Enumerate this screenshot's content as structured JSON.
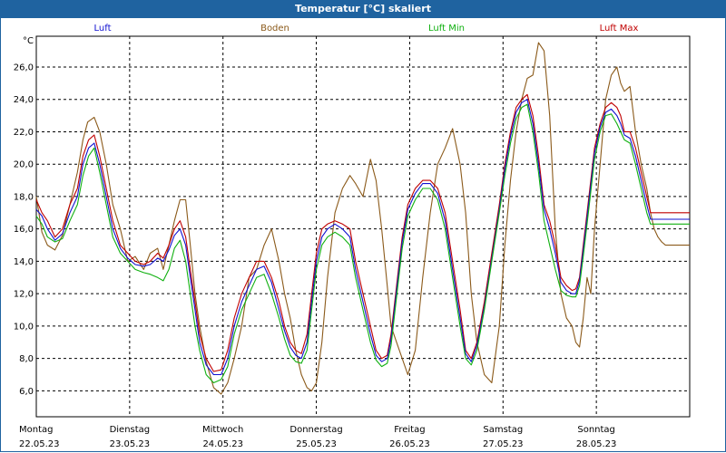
{
  "title": "Temperatur [°C] skaliert",
  "chart_data": {
    "type": "line",
    "ylabel": "°C",
    "ylim": [
      4.4,
      27.9
    ],
    "yticks": [
      6.0,
      8.0,
      10.0,
      12.0,
      14.0,
      16.0,
      18.0,
      20.0,
      22.0,
      24.0,
      26.0
    ],
    "ytick_labels": [
      "6,0",
      "8,0",
      "10,0",
      "12,0",
      "14,0",
      "16,0",
      "18,0",
      "20,0",
      "22,0",
      "24,0",
      "26,0"
    ],
    "xlim": [
      0,
      7.0
    ],
    "days": [
      {
        "name": "Montag",
        "date": "22.05.23"
      },
      {
        "name": "Dienstag",
        "date": "23.05.23"
      },
      {
        "name": "Mittwoch",
        "date": "24.05.23"
      },
      {
        "name": "Donnerstag",
        "date": "25.05.23"
      },
      {
        "name": "Freitag",
        "date": "26.05.23"
      },
      {
        "name": "Samstag",
        "date": "27.05.23"
      },
      {
        "name": "Sonntag",
        "date": "28.05.23"
      }
    ],
    "series": [
      {
        "name": "Boden",
        "color": "#8b5a1a",
        "x": [
          0.0,
          0.06,
          0.12,
          0.2,
          0.28,
          0.36,
          0.44,
          0.5,
          0.55,
          0.62,
          0.68,
          0.75,
          0.82,
          0.9,
          0.98,
          1.06,
          1.15,
          1.22,
          1.3,
          1.36,
          1.42,
          1.48,
          1.54,
          1.6,
          1.65,
          1.7,
          1.75,
          1.82,
          1.9,
          1.98,
          2.05,
          2.12,
          2.2,
          2.28,
          2.36,
          2.44,
          2.52,
          2.6,
          2.66,
          2.72,
          2.78,
          2.84,
          2.9,
          2.95,
          3.0,
          3.06,
          3.12,
          3.2,
          3.28,
          3.36,
          3.42,
          3.5,
          3.58,
          3.64,
          3.7,
          3.76,
          3.8,
          3.86,
          3.92,
          3.98,
          4.06,
          4.14,
          4.22,
          4.3,
          4.38,
          4.46,
          4.54,
          4.6,
          4.66,
          4.72,
          4.8,
          4.88,
          4.96,
          5.02,
          5.08,
          5.14,
          5.2,
          5.26,
          5.32,
          5.38,
          5.44,
          5.5,
          5.56,
          5.62,
          5.68,
          5.74,
          5.78,
          5.82,
          5.86,
          5.9,
          5.94,
          5.98,
          6.04,
          6.1,
          6.16,
          6.22,
          6.26,
          6.3,
          6.36,
          6.42,
          6.48,
          6.54,
          6.58,
          6.62,
          6.66,
          6.7,
          6.74,
          6.8,
          6.86,
          6.92,
          7.0
        ],
        "y": [
          18.0,
          15.8,
          15.0,
          14.7,
          15.6,
          17.5,
          19.5,
          21.5,
          22.6,
          22.9,
          22.0,
          20.0,
          17.5,
          16.0,
          14.0,
          14.3,
          13.5,
          14.5,
          14.8,
          13.5,
          15.0,
          16.5,
          17.8,
          17.8,
          15.0,
          12.0,
          10.0,
          7.8,
          6.2,
          5.8,
          6.5,
          8.0,
          10.0,
          13.0,
          13.5,
          15.0,
          16.0,
          14.0,
          12.0,
          10.5,
          8.5,
          7.0,
          6.2,
          6.0,
          6.5,
          9.0,
          13.0,
          17.0,
          18.5,
          19.3,
          18.8,
          18.0,
          20.3,
          19.0,
          16.0,
          12.5,
          10.0,
          9.0,
          8.0,
          7.0,
          8.5,
          13.0,
          17.0,
          20.0,
          21.0,
          22.2,
          20.0,
          17.0,
          12.0,
          9.0,
          7.0,
          6.5,
          10.0,
          15.0,
          19.0,
          22.0,
          24.0,
          25.3,
          25.5,
          27.5,
          27.0,
          23.0,
          16.0,
          12.0,
          10.5,
          10.0,
          9.0,
          8.7,
          10.5,
          13.0,
          12.0,
          16.0,
          20.0,
          24.0,
          25.5,
          26.0,
          25.0,
          24.5,
          24.8,
          22.0,
          20.0,
          18.5,
          17.0,
          16.0,
          15.5,
          15.2,
          15.0,
          15.0,
          15.0,
          15.0,
          15.0
        ]
      },
      {
        "name": "Luft Max",
        "color": "#c00000",
        "x": [
          0.0,
          0.06,
          0.12,
          0.2,
          0.28,
          0.36,
          0.44,
          0.5,
          0.56,
          0.62,
          0.68,
          0.75,
          0.82,
          0.9,
          0.98,
          1.06,
          1.15,
          1.22,
          1.3,
          1.36,
          1.42,
          1.48,
          1.54,
          1.6,
          1.65,
          1.7,
          1.75,
          1.82,
          1.9,
          1.98,
          2.05,
          2.12,
          2.2,
          2.28,
          2.36,
          2.44,
          2.52,
          2.6,
          2.66,
          2.72,
          2.78,
          2.84,
          2.9,
          2.95,
          3.0,
          3.06,
          3.12,
          3.2,
          3.28,
          3.36,
          3.42,
          3.5,
          3.58,
          3.64,
          3.7,
          3.76,
          3.8,
          3.86,
          3.92,
          3.98,
          4.06,
          4.14,
          4.22,
          4.3,
          4.38,
          4.46,
          4.54,
          4.6,
          4.66,
          4.72,
          4.8,
          4.88,
          4.96,
          5.02,
          5.08,
          5.14,
          5.2,
          5.26,
          5.32,
          5.38,
          5.44,
          5.5,
          5.56,
          5.62,
          5.68,
          5.74,
          5.78,
          5.82,
          5.86,
          5.9,
          5.94,
          5.98,
          6.04,
          6.1,
          6.16,
          6.22,
          6.26,
          6.3,
          6.36,
          6.42,
          6.48,
          6.54,
          6.58,
          6.62,
          6.66,
          6.7,
          6.74,
          6.8,
          6.86,
          6.92,
          7.0
        ],
        "y": [
          17.8,
          17.0,
          16.5,
          15.5,
          16.0,
          17.5,
          18.5,
          20.5,
          21.5,
          21.8,
          20.5,
          18.5,
          16.5,
          15.0,
          14.5,
          14.0,
          13.8,
          14.0,
          14.5,
          14.2,
          15.0,
          16.0,
          16.5,
          15.5,
          13.5,
          11.5,
          9.5,
          8.0,
          7.2,
          7.3,
          8.5,
          10.5,
          12.0,
          13.0,
          14.0,
          14.0,
          13.0,
          11.5,
          10.0,
          9.0,
          8.5,
          8.3,
          9.5,
          12.0,
          14.5,
          16.0,
          16.3,
          16.5,
          16.3,
          16.0,
          14.0,
          12.0,
          10.0,
          8.5,
          8.0,
          8.2,
          9.5,
          12.5,
          15.5,
          17.5,
          18.5,
          19.0,
          19.0,
          18.5,
          17.0,
          14.0,
          11.0,
          8.5,
          8.0,
          9.0,
          11.5,
          14.5,
          17.5,
          20.0,
          22.0,
          23.5,
          24.0,
          24.3,
          23.0,
          20.5,
          17.5,
          16.5,
          15.0,
          13.0,
          12.5,
          12.2,
          12.3,
          13.0,
          15.0,
          17.0,
          19.0,
          21.0,
          22.5,
          23.5,
          23.8,
          23.5,
          23.0,
          22.0,
          22.0,
          21.0,
          19.5,
          18.0,
          17.0,
          17.0,
          17.0,
          17.0,
          17.0,
          17.0,
          17.0,
          17.0,
          17.0
        ]
      },
      {
        "name": "Luft",
        "color": "#1010d0",
        "x": [
          0.0,
          0.06,
          0.12,
          0.2,
          0.28,
          0.36,
          0.44,
          0.5,
          0.56,
          0.62,
          0.68,
          0.75,
          0.82,
          0.9,
          0.98,
          1.06,
          1.15,
          1.22,
          1.3,
          1.36,
          1.42,
          1.48,
          1.54,
          1.6,
          1.65,
          1.7,
          1.75,
          1.82,
          1.9,
          1.98,
          2.05,
          2.12,
          2.2,
          2.28,
          2.36,
          2.44,
          2.52,
          2.6,
          2.66,
          2.72,
          2.78,
          2.84,
          2.9,
          2.95,
          3.0,
          3.06,
          3.12,
          3.2,
          3.28,
          3.36,
          3.42,
          3.5,
          3.58,
          3.64,
          3.7,
          3.76,
          3.8,
          3.86,
          3.92,
          3.98,
          4.06,
          4.14,
          4.22,
          4.3,
          4.38,
          4.46,
          4.54,
          4.6,
          4.66,
          4.72,
          4.8,
          4.88,
          4.96,
          5.02,
          5.08,
          5.14,
          5.2,
          5.26,
          5.32,
          5.38,
          5.44,
          5.5,
          5.56,
          5.62,
          5.68,
          5.74,
          5.78,
          5.82,
          5.86,
          5.9,
          5.94,
          5.98,
          6.04,
          6.1,
          6.16,
          6.22,
          6.26,
          6.3,
          6.36,
          6.42,
          6.48,
          6.54,
          6.58,
          6.62,
          6.66,
          6.7,
          6.74,
          6.8,
          6.86,
          6.92,
          7.0
        ],
        "y": [
          17.2,
          16.8,
          16.0,
          15.3,
          15.7,
          17.0,
          18.0,
          20.0,
          21.0,
          21.3,
          20.0,
          18.0,
          16.0,
          14.8,
          14.2,
          13.8,
          13.7,
          13.8,
          14.2,
          14.0,
          14.7,
          15.6,
          16.0,
          15.0,
          13.0,
          11.0,
          9.0,
          7.6,
          7.0,
          7.0,
          8.0,
          10.0,
          11.5,
          12.5,
          13.5,
          13.7,
          12.7,
          11.0,
          9.7,
          8.7,
          8.2,
          8.0,
          9.0,
          11.5,
          14.0,
          15.5,
          16.0,
          16.3,
          16.0,
          15.5,
          13.5,
          11.5,
          9.5,
          8.2,
          7.8,
          8.0,
          9.2,
          12.2,
          15.2,
          17.2,
          18.2,
          18.8,
          18.8,
          18.2,
          16.5,
          13.5,
          10.5,
          8.3,
          7.8,
          8.8,
          11.2,
          14.2,
          17.2,
          19.7,
          21.7,
          23.2,
          23.8,
          24.0,
          22.5,
          20.0,
          17.2,
          16.0,
          14.5,
          12.7,
          12.2,
          12.0,
          12.0,
          12.8,
          14.7,
          16.7,
          18.7,
          20.7,
          22.3,
          23.2,
          23.4,
          23.0,
          22.5,
          21.8,
          21.6,
          20.5,
          19.0,
          17.5,
          16.6,
          16.6,
          16.6,
          16.6,
          16.6,
          16.6,
          16.6,
          16.6,
          16.6
        ]
      },
      {
        "name": "Luft Min",
        "color": "#10b010",
        "x": [
          0.0,
          0.06,
          0.12,
          0.2,
          0.28,
          0.36,
          0.44,
          0.5,
          0.56,
          0.62,
          0.68,
          0.75,
          0.82,
          0.9,
          0.98,
          1.06,
          1.15,
          1.22,
          1.3,
          1.36,
          1.42,
          1.48,
          1.54,
          1.6,
          1.65,
          1.7,
          1.75,
          1.82,
          1.9,
          1.98,
          2.05,
          2.12,
          2.2,
          2.28,
          2.36,
          2.44,
          2.52,
          2.6,
          2.66,
          2.72,
          2.78,
          2.84,
          2.9,
          2.95,
          3.0,
          3.06,
          3.12,
          3.2,
          3.28,
          3.36,
          3.42,
          3.5,
          3.58,
          3.64,
          3.7,
          3.76,
          3.8,
          3.86,
          3.92,
          3.98,
          4.06,
          4.14,
          4.22,
          4.3,
          4.38,
          4.46,
          4.54,
          4.6,
          4.66,
          4.72,
          4.8,
          4.88,
          4.96,
          5.02,
          5.08,
          5.14,
          5.2,
          5.26,
          5.32,
          5.38,
          5.44,
          5.5,
          5.56,
          5.62,
          5.68,
          5.74,
          5.78,
          5.82,
          5.86,
          5.9,
          5.94,
          5.98,
          6.04,
          6.1,
          6.16,
          6.22,
          6.26,
          6.3,
          6.36,
          6.42,
          6.48,
          6.54,
          6.58,
          6.62,
          6.66,
          6.7,
          6.74,
          6.8,
          6.86,
          6.92,
          7.0
        ],
        "y": [
          16.8,
          16.3,
          15.5,
          15.2,
          15.4,
          16.5,
          17.5,
          19.3,
          20.5,
          21.0,
          19.5,
          17.5,
          15.5,
          14.5,
          14.0,
          13.5,
          13.3,
          13.2,
          13.0,
          12.8,
          13.5,
          14.8,
          15.3,
          14.0,
          12.0,
          10.0,
          8.5,
          7.0,
          6.5,
          6.7,
          7.5,
          9.5,
          11.0,
          12.0,
          13.0,
          13.2,
          12.0,
          10.5,
          9.2,
          8.2,
          7.8,
          7.7,
          8.5,
          11.0,
          13.5,
          15.0,
          15.5,
          15.8,
          15.5,
          15.0,
          13.0,
          11.0,
          9.0,
          7.9,
          7.5,
          7.7,
          8.8,
          11.8,
          14.8,
          16.8,
          17.8,
          18.5,
          18.5,
          17.8,
          16.0,
          13.0,
          10.0,
          8.0,
          7.6,
          8.5,
          11.0,
          14.0,
          17.0,
          19.3,
          21.3,
          22.8,
          23.5,
          23.7,
          22.0,
          19.5,
          16.5,
          15.0,
          13.5,
          12.2,
          11.9,
          11.8,
          11.8,
          12.5,
          14.3,
          16.3,
          18.3,
          20.3,
          22.0,
          23.0,
          23.1,
          22.5,
          22.0,
          21.5,
          21.3,
          20.0,
          18.5,
          17.0,
          16.3,
          16.3,
          16.3,
          16.3,
          16.3,
          16.3,
          16.3,
          16.3,
          16.3
        ]
      }
    ]
  }
}
